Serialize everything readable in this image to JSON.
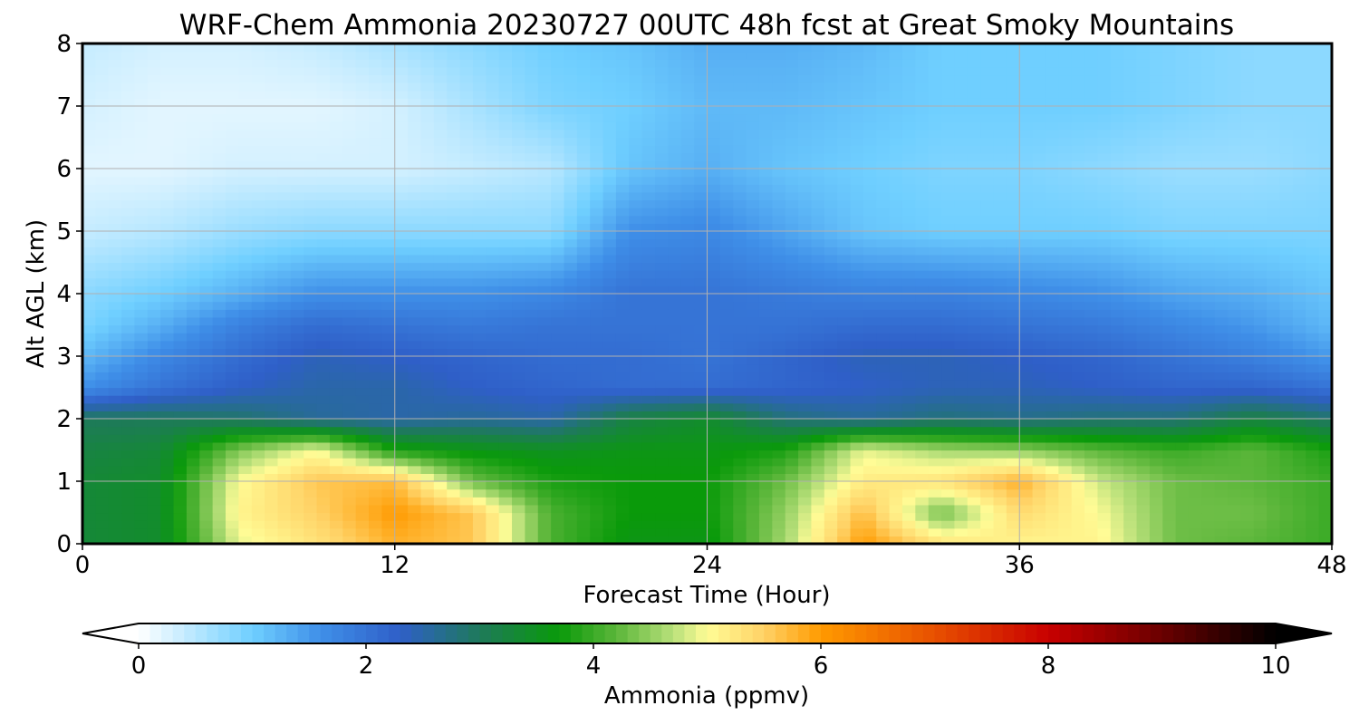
{
  "chart_data": {
    "type": "heatmap",
    "title": "WRF-Chem Ammonia  20230727 00UTC 48h fcst at Great Smoky Mountains",
    "xlabel": "Forecast Time (Hour)",
    "ylabel": "Alt AGL (km)",
    "xlim": [
      0,
      48
    ],
    "ylim": [
      0,
      8
    ],
    "xticks": [
      "0",
      "12",
      "24",
      "36",
      "48"
    ],
    "yticks": [
      "0",
      "1",
      "2",
      "3",
      "4",
      "5",
      "6",
      "7",
      "8"
    ],
    "grid": true,
    "x_hours": [
      0,
      3,
      6,
      9,
      12,
      15,
      18,
      21,
      24,
      27,
      30,
      33,
      36,
      39,
      42,
      45,
      48
    ],
    "z_km": [
      0,
      0.5,
      1,
      1.5,
      2,
      2.5,
      3,
      3.5,
      4,
      5,
      6,
      7,
      8
    ],
    "values_ppmv": [
      [
        3.3,
        3.4,
        4.9,
        5.3,
        5.8,
        5.6,
        4.1,
        3.6,
        3.6,
        4.6,
        6.0,
        5.3,
        5.1,
        5.1,
        4.3,
        4.2,
        4.0
      ],
      [
        3.3,
        3.4,
        5.1,
        5.5,
        6.0,
        5.6,
        4.1,
        3.7,
        3.7,
        4.5,
        5.7,
        4.3,
        5.4,
        5.0,
        4.3,
        4.3,
        4.0
      ],
      [
        3.3,
        3.4,
        5.0,
        5.6,
        5.7,
        4.3,
        3.8,
        3.7,
        3.7,
        4.3,
        5.2,
        5.3,
        5.8,
        4.8,
        4.3,
        4.2,
        4.0
      ],
      [
        3.2,
        3.3,
        4.4,
        5.0,
        3.8,
        3.6,
        3.5,
        3.6,
        3.6,
        3.8,
        4.9,
        4.6,
        4.5,
        4.2,
        4.0,
        4.2,
        3.8
      ],
      [
        3.0,
        3.0,
        2.9,
        2.6,
        2.5,
        2.6,
        2.5,
        3.2,
        3.4,
        2.8,
        2.6,
        2.8,
        2.7,
        2.8,
        2.8,
        3.2,
        2.9
      ],
      [
        1.6,
        2.0,
        2.3,
        2.5,
        2.5,
        2.3,
        2.2,
        2.1,
        2.1,
        2.2,
        2.3,
        2.4,
        2.4,
        2.3,
        2.2,
        2.2,
        2.0
      ],
      [
        1.2,
        1.7,
        2.1,
        2.4,
        2.3,
        2.2,
        2.1,
        2.1,
        2.0,
        2.2,
        2.4,
        2.4,
        2.3,
        2.2,
        2.0,
        1.8,
        1.5
      ],
      [
        0.9,
        1.3,
        1.8,
        2.1,
        2.0,
        1.9,
        2.0,
        2.0,
        2.0,
        2.0,
        2.1,
        2.1,
        2.0,
        1.9,
        1.7,
        1.5,
        1.2
      ],
      [
        0.8,
        1.0,
        1.3,
        1.6,
        1.6,
        1.6,
        1.7,
        2.0,
        2.0,
        1.9,
        1.8,
        1.8,
        1.7,
        1.6,
        1.4,
        1.3,
        1.1
      ],
      [
        0.4,
        0.5,
        0.7,
        0.8,
        0.8,
        0.8,
        0.8,
        1.6,
        1.7,
        1.4,
        1.1,
        1.0,
        1.0,
        1.0,
        0.9,
        0.9,
        0.9
      ],
      [
        0.2,
        0.2,
        0.3,
        0.3,
        0.3,
        0.4,
        0.5,
        1.1,
        1.3,
        1.1,
        1.0,
        0.9,
        0.9,
        0.8,
        0.7,
        0.7,
        0.8
      ],
      [
        0.3,
        0.2,
        0.2,
        0.2,
        0.3,
        0.6,
        0.9,
        1.0,
        1.2,
        1.2,
        1.1,
        1.0,
        1.0,
        1.0,
        0.9,
        0.8,
        0.8
      ],
      [
        0.4,
        0.3,
        0.3,
        0.4,
        0.6,
        0.8,
        1.0,
        1.1,
        1.3,
        1.3,
        1.2,
        1.0,
        1.0,
        1.0,
        0.9,
        0.8,
        0.8
      ]
    ],
    "colorbar": {
      "label": "Ammonia  (ppmv)",
      "range": [
        0,
        10
      ],
      "ticks": [
        "0",
        "2",
        "4",
        "6",
        "8",
        "10"
      ],
      "extend": "both",
      "stops": [
        {
          "v": 0,
          "color": "#ffffff"
        },
        {
          "v": 1,
          "color": "#6fcfff"
        },
        {
          "v": 1.6,
          "color": "#3f8fe8"
        },
        {
          "v": 2.3,
          "color": "#2f5fc8"
        },
        {
          "v": 3.0,
          "color": "#1e7a5a"
        },
        {
          "v": 3.7,
          "color": "#0a9a0a"
        },
        {
          "v": 4.2,
          "color": "#5bb63a"
        },
        {
          "v": 4.7,
          "color": "#b8e07a"
        },
        {
          "v": 5.0,
          "color": "#fffc96"
        },
        {
          "v": 5.5,
          "color": "#ffd266"
        },
        {
          "v": 6.0,
          "color": "#ff9a00"
        },
        {
          "v": 7.0,
          "color": "#e85000"
        },
        {
          "v": 8.0,
          "color": "#c80000"
        },
        {
          "v": 9.0,
          "color": "#6a0000"
        },
        {
          "v": 10,
          "color": "#000000"
        }
      ]
    }
  }
}
